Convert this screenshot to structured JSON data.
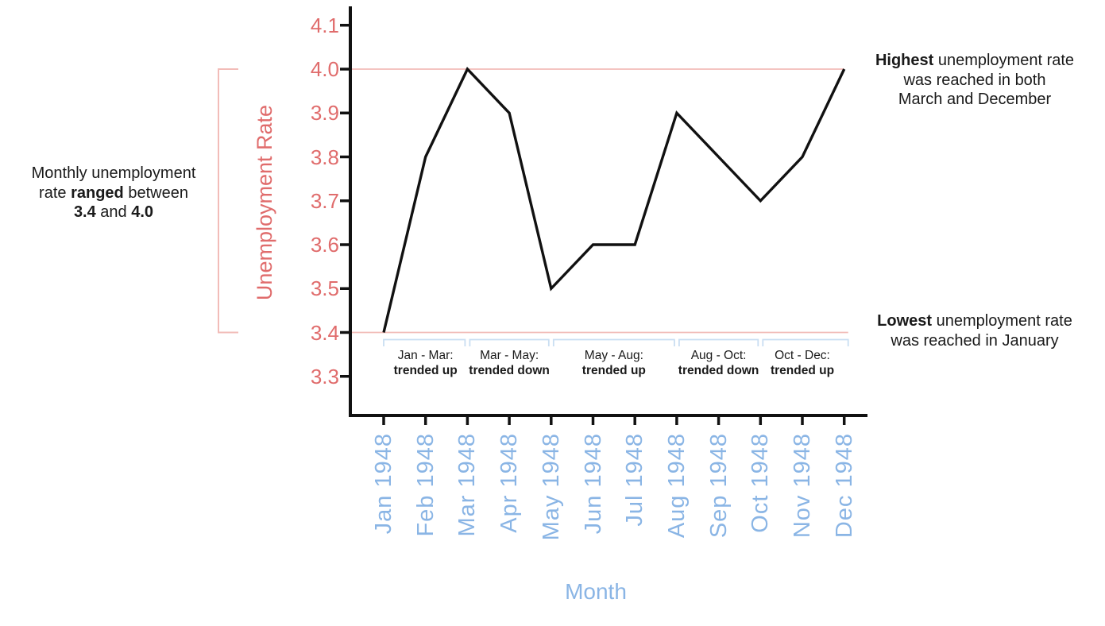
{
  "chart_data": {
    "type": "line",
    "title": "",
    "xlabel": "Month",
    "ylabel": "Unemployment Rate",
    "categories": [
      "Jan 1948",
      "Feb 1948",
      "Mar 1948",
      "Apr 1948",
      "May 1948",
      "Jun 1948",
      "Jul 1948",
      "Aug 1948",
      "Sep 1948",
      "Oct 1948",
      "Nov 1948",
      "Dec 1948"
    ],
    "values": [
      3.4,
      3.8,
      4.0,
      3.9,
      3.5,
      3.6,
      3.6,
      3.9,
      3.8,
      3.7,
      3.8,
      4.0
    ],
    "ytick_labels": [
      "4.1",
      "4.0",
      "3.9",
      "3.8",
      "3.7",
      "3.6",
      "3.5",
      "3.4",
      "3.3"
    ],
    "ytick_values": [
      4.1,
      4.0,
      3.9,
      3.8,
      3.7,
      3.6,
      3.5,
      3.4,
      3.3
    ],
    "ylim": [
      3.25,
      4.15
    ],
    "grid": false,
    "legend": "none",
    "reference_lines": [
      {
        "value": 4.0,
        "meaning": "highest"
      },
      {
        "value": 3.4,
        "meaning": "lowest"
      }
    ]
  },
  "annotations": {
    "range_note": {
      "lines": [
        [
          {
            "t": "Monthly unemployment"
          }
        ],
        [
          {
            "t": "rate "
          },
          {
            "t": "ranged",
            "b": true
          },
          {
            "t": " between"
          }
        ],
        [
          {
            "t": "3.4",
            "b": true
          },
          {
            "t": " and "
          },
          {
            "t": "4.0",
            "b": true
          }
        ]
      ]
    },
    "highest_note": {
      "lines": [
        [
          {
            "t": "Highest",
            "b": true
          },
          {
            "t": " unemployment rate"
          }
        ],
        [
          {
            "t": "was reached in both"
          }
        ],
        [
          {
            "t": "March and December"
          }
        ]
      ]
    },
    "lowest_note": {
      "lines": [
        [
          {
            "t": "Lowest",
            "b": true
          },
          {
            "t": " unemployment rate"
          }
        ],
        [
          {
            "t": "was reached in January"
          }
        ]
      ]
    },
    "trends": [
      {
        "range": "Jan - Mar:",
        "trend": "trended up",
        "from": 0,
        "to": 2
      },
      {
        "range": "Mar - May:",
        "trend": "trended down",
        "from": 2,
        "to": 4
      },
      {
        "range": "May - Aug:",
        "trend": "trended up",
        "from": 4,
        "to": 7
      },
      {
        "range": "Aug - Oct:",
        "trend": "trended down",
        "from": 7,
        "to": 9
      },
      {
        "range": "Oct - Dec:",
        "trend": "trended up",
        "from": 9,
        "to": 11
      }
    ]
  },
  "colors": {
    "axis": "#111111",
    "series_line": "#111111",
    "pink": "#e06c6c",
    "pink_light": "#f2bcb8",
    "blue": "#8ab5e5",
    "blue_light": "#c9def2"
  }
}
